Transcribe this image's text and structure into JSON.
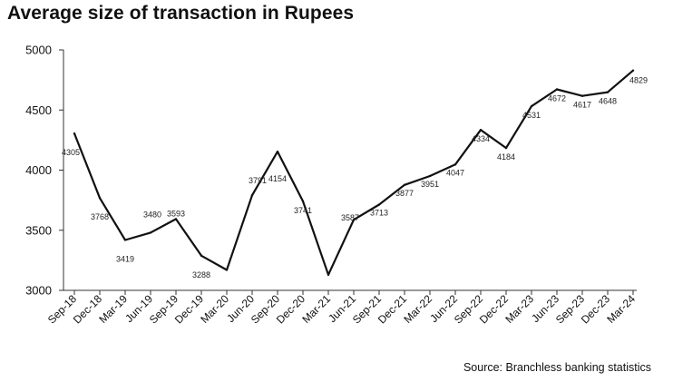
{
  "title": "Average size of transaction in Rupees",
  "source": "Source: Branchless banking statistics",
  "chart_data": {
    "type": "line",
    "title": "Average size of transaction in Rupees",
    "xlabel": "",
    "ylabel": "",
    "ylim": [
      3000,
      5000
    ],
    "yticks": [
      3000,
      3500,
      4000,
      4500,
      5000
    ],
    "grid": false,
    "legend": "none",
    "line_color": "#111111",
    "categories": [
      "Sep-18",
      "Dec-18",
      "Mar-19",
      "Jun-19",
      "Sep-19",
      "Dec-19",
      "Mar-20",
      "Jun-20",
      "Sep-20",
      "Dec-20",
      "Mar-21",
      "Jun-21",
      "Sep-21",
      "Dec-21",
      "Mar-22",
      "Jun-22",
      "Sep-22",
      "Dec-22",
      "Mar-23",
      "Jun-23",
      "Sep-23",
      "Dec-23",
      "Mar-24"
    ],
    "values": [
      4305,
      3768,
      3419,
      3480,
      3593,
      3288,
      3170,
      3791,
      4154,
      3741,
      3130,
      3587,
      3713,
      3877,
      3951,
      4047,
      4334,
      4184,
      4531,
      4672,
      4617,
      4648,
      4829
    ],
    "data_labels": [
      "4305",
      "3768",
      "3419",
      "3480",
      "3593",
      "3288",
      "",
      "3791",
      "4154",
      "3741",
      "",
      "3587",
      "3713",
      "3877",
      "3951",
      "4047",
      "4334",
      "4184",
      "4531",
      "4672",
      "4617",
      "4648",
      "4829"
    ]
  }
}
